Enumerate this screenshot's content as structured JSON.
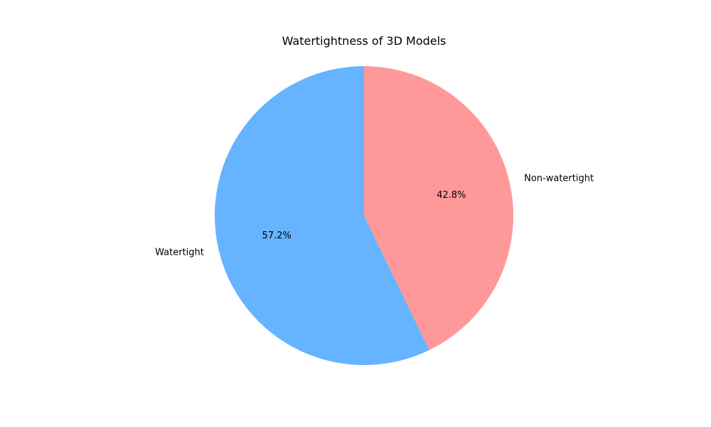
{
  "chart_data": {
    "type": "pie",
    "title": "Watertightness of 3D Models",
    "start_angle_deg": 90,
    "direction": "clockwise",
    "slices": [
      {
        "label": "Non-watertight",
        "value": 42.8,
        "pct_label": "42.8%",
        "color": "#ff9999"
      },
      {
        "label": "Watertight",
        "value": 57.2,
        "pct_label": "57.2%",
        "color": "#66b3ff"
      }
    ]
  }
}
